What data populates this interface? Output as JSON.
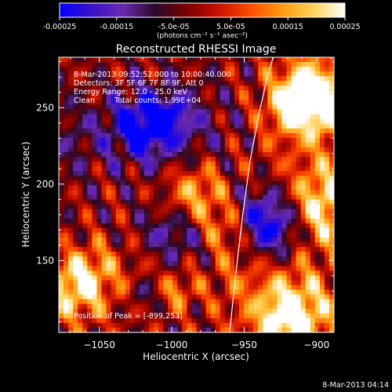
{
  "chart_data": {
    "type": "heatmap",
    "title": "Reconstructed RHESSI Image",
    "xlabel": "Heliocentric X (arcsec)",
    "ylabel": "Heliocentric Y (arcsec)",
    "x_ticks": [
      -1050,
      -1000,
      -950,
      -900
    ],
    "y_ticks": [
      150,
      200,
      250
    ],
    "xlim": [
      -1078,
      -888
    ],
    "ylim": [
      103,
      283
    ],
    "colorbar": {
      "min": -0.00025,
      "max": 0.00025,
      "tick_values": [
        -0.00025,
        -0.00015,
        -5e-05,
        5e-05,
        0.00015,
        0.00025
      ],
      "tick_labels": [
        "-0.00025",
        "-0.00015",
        "-5.0e-05",
        "5.0e-05",
        "0.00015",
        "0.00025"
      ],
      "unit_label": "(photons cm⁻² s⁻¹ asec⁻²)",
      "colors": [
        "#0000ff",
        "#3a12c8",
        "#6a2ab0",
        "#2a0a2a",
        "#7a0000",
        "#c81000",
        "#ff4a00",
        "#ff9a10",
        "#ffd25a",
        "#ffffff"
      ]
    },
    "annotations": {
      "time_range": "8-Mar-2013 09:52:52.000 to 10:00:40.000",
      "detectors": "Detectors: 3F 5F 6F 7F 8F 9F, Att 0",
      "energy": "Energy Range: 12.0 - 25.0 keV",
      "clean_label": "Clean",
      "total_counts": "Total counts: 1.99E+04",
      "peak": "Position of Peak = [-899,253]"
    },
    "limb_points": [
      [
        -960,
        103
      ],
      [
        -956,
        140
      ],
      [
        -951,
        180
      ],
      [
        -946,
        215
      ],
      [
        -940,
        245
      ],
      [
        -934,
        270
      ],
      [
        -930,
        283
      ]
    ],
    "peak_position": [
      -899,
      253
    ]
  },
  "footer_timestamp": "8-Mar-2013 04:14"
}
